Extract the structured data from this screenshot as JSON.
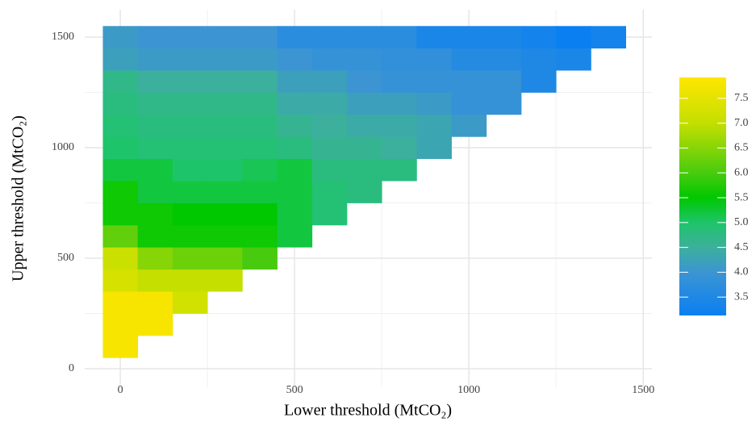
{
  "chart_data": {
    "type": "heatmap",
    "xlabel": "Lower threshold  (MtCO₂)",
    "ylabel": "Upper threshold  (MtCO₂)",
    "x": [
      0,
      100,
      200,
      300,
      400,
      500,
      600,
      700,
      800,
      900,
      1000,
      1100,
      1200,
      1300,
      1400
    ],
    "y": [
      100,
      200,
      300,
      400,
      500,
      600,
      700,
      800,
      900,
      1000,
      1100,
      1200,
      1300,
      1400,
      1500
    ],
    "values": [
      [
        7.8,
        null,
        null,
        null,
        null,
        null,
        null,
        null,
        null,
        null,
        null,
        null,
        null,
        null,
        null
      ],
      [
        7.8,
        7.8,
        null,
        null,
        null,
        null,
        null,
        null,
        null,
        null,
        null,
        null,
        null,
        null,
        null
      ],
      [
        7.8,
        7.8,
        7.2,
        null,
        null,
        null,
        null,
        null,
        null,
        null,
        null,
        null,
        null,
        null,
        null
      ],
      [
        7.3,
        7.0,
        7.0,
        7.0,
        null,
        null,
        null,
        null,
        null,
        null,
        null,
        null,
        null,
        null,
        null
      ],
      [
        7.1,
        6.5,
        6.3,
        6.3,
        6.0,
        null,
        null,
        null,
        null,
        null,
        null,
        null,
        null,
        null,
        null
      ],
      [
        6.2,
        5.6,
        5.6,
        5.6,
        5.6,
        5.2,
        null,
        null,
        null,
        null,
        null,
        null,
        null,
        null,
        null
      ],
      [
        5.6,
        5.6,
        5.5,
        5.5,
        5.5,
        5.2,
        4.9,
        null,
        null,
        null,
        null,
        null,
        null,
        null,
        null
      ],
      [
        5.6,
        5.2,
        5.2,
        5.2,
        5.2,
        5.2,
        4.9,
        4.8,
        null,
        null,
        null,
        null,
        null,
        null,
        null
      ],
      [
        5.2,
        5.2,
        5.0,
        5.0,
        5.1,
        5.2,
        4.8,
        4.8,
        4.8,
        null,
        null,
        null,
        null,
        null,
        null
      ],
      [
        5.0,
        4.9,
        4.9,
        4.9,
        4.9,
        4.8,
        4.6,
        4.6,
        4.5,
        4.3,
        null,
        null,
        null,
        null,
        null
      ],
      [
        4.9,
        4.8,
        4.8,
        4.8,
        4.8,
        4.6,
        4.5,
        4.4,
        4.4,
        4.3,
        4.1,
        null,
        null,
        null,
        null
      ],
      [
        4.8,
        4.7,
        4.7,
        4.7,
        4.7,
        4.4,
        4.4,
        4.2,
        4.2,
        4.1,
        3.9,
        3.9,
        null,
        null,
        null
      ],
      [
        4.7,
        4.5,
        4.5,
        4.5,
        4.5,
        4.2,
        4.2,
        4.0,
        3.9,
        3.9,
        3.9,
        3.9,
        3.5,
        null,
        null
      ],
      [
        4.2,
        4.1,
        4.1,
        4.1,
        4.1,
        4.0,
        3.9,
        3.9,
        3.8,
        3.8,
        3.6,
        3.6,
        3.5,
        3.4,
        null
      ],
      [
        4.1,
        4.0,
        4.0,
        4.0,
        4.0,
        3.7,
        3.7,
        3.7,
        3.7,
        3.4,
        3.4,
        3.4,
        3.3,
        3.1,
        3.3
      ]
    ],
    "xlim": [
      -102,
      1525
    ],
    "ylim": [
      -84,
      1624
    ],
    "xticks": [
      0,
      500,
      1000,
      1500
    ],
    "yticks": [
      0,
      500,
      1000,
      1500
    ],
    "xminor": [
      250,
      750,
      1250
    ],
    "yminor": [
      250,
      750,
      1250
    ],
    "grid": true,
    "clim": [
      3.13,
      7.92
    ],
    "cticks": [
      3.5,
      {
        "value": 4,
        "label": "4.0"
      },
      4.5,
      {
        "value": 5,
        "label": "5.0"
      },
      5.5,
      {
        "value": 6,
        "label": "6.0"
      },
      6.5,
      {
        "value": 7,
        "label": "7.0"
      },
      7.5
    ],
    "colorscale": [
      [
        3.13,
        "#0a7ff2"
      ],
      [
        4.0,
        "#3c95d2"
      ],
      [
        4.5,
        "#3cb09c"
      ],
      [
        5.0,
        "#1ec46a"
      ],
      [
        5.5,
        "#00c800"
      ],
      [
        6.0,
        "#48cb0e"
      ],
      [
        7.0,
        "#c4df00"
      ],
      [
        7.92,
        "#ffe600"
      ]
    ]
  }
}
